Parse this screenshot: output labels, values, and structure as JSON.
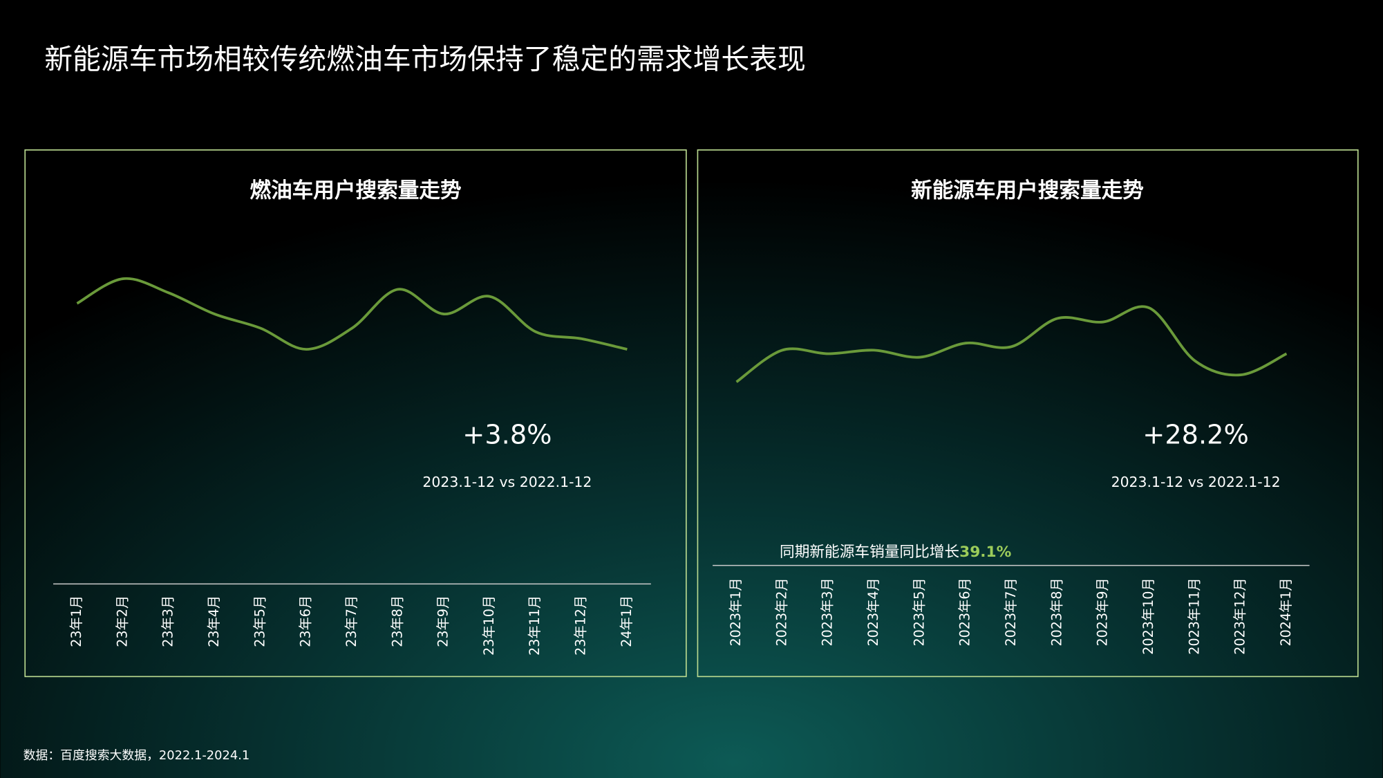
{
  "title": "新能源车市场相较传统燃油车市场保持了稳定的需求增长表现",
  "source": "数据：百度搜索大数据，2022.1-2024.1",
  "chart_data": [
    {
      "type": "line",
      "title": "燃油车用户搜索量走势",
      "categories": [
        "23年1月",
        "23年2月",
        "23年3月",
        "23年4月",
        "23年5月",
        "23年6月",
        "23年7月",
        "23年8月",
        "23年9月",
        "23年10月",
        "23年11月",
        "23年12月",
        "24年1月"
      ],
      "values": [
        79,
        86,
        82,
        76,
        72,
        66,
        72,
        83,
        76,
        81,
        71,
        69,
        66
      ],
      "color": "#6a9a3a",
      "ylim": [
        0,
        100
      ],
      "growth": "+3.8%",
      "period": "2023.1-12 vs 2022.1-12"
    },
    {
      "type": "line",
      "title": "新能源车用户搜索量走势",
      "categories": [
        "2023年1月",
        "2023年2月",
        "2023年3月",
        "2023年4月",
        "2023年5月",
        "2023年6月",
        "2023年7月",
        "2023年8月",
        "2023年9月",
        "2023年10月",
        "2023年11月",
        "2023年12月",
        "2024年1月"
      ],
      "values": [
        52,
        61,
        60,
        61,
        59,
        63,
        62,
        70,
        69,
        73,
        58,
        54,
        60
      ],
      "color": "#6a9a3a",
      "ylim": [
        0,
        100
      ],
      "growth": "+28.2%",
      "period": "2023.1-12 vs 2022.1-12",
      "note": "同期新能源车销量同比增长",
      "note_value": "39.1%"
    }
  ]
}
